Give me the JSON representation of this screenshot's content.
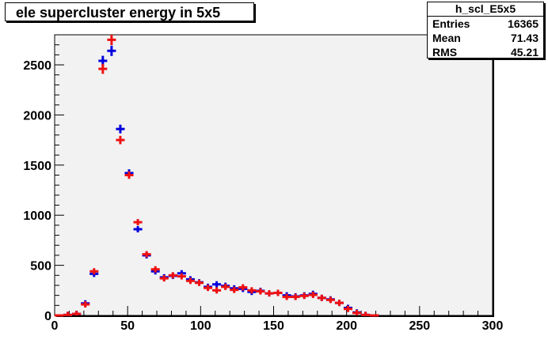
{
  "title_box": {
    "title": "ele supercluster energy in 5x5"
  },
  "stats": {
    "name": "h_scl_E5x5",
    "rows": [
      {
        "label": "Entries",
        "value": "16365"
      },
      {
        "label": "Mean",
        "value": "71.43"
      },
      {
        "label": "RMS",
        "value": "45.21"
      }
    ]
  },
  "colors": {
    "plot_bg": "#f2f2f2",
    "blue_series": "#0000dd",
    "red_series": "#ee1111"
  },
  "chart_data": {
    "type": "scatter",
    "title": "ele supercluster energy in 5x5",
    "xlabel": "",
    "ylabel": "",
    "xlim": [
      0,
      300
    ],
    "ylim": [
      0,
      2800
    ],
    "bin_width": 6,
    "x_ticks": [
      0,
      50,
      100,
      150,
      200,
      250,
      300
    ],
    "y_ticks": [
      0,
      500,
      1000,
      1500,
      2000,
      2500
    ],
    "grid": false,
    "series": [
      {
        "color": "blue",
        "x": [
          3,
          9,
          15,
          21,
          27,
          33,
          39,
          45,
          51,
          57,
          63,
          69,
          75,
          81,
          87,
          93,
          99,
          105,
          111,
          117,
          123,
          129,
          135,
          141,
          147,
          153,
          159,
          165,
          171,
          177,
          183,
          189,
          195,
          201,
          207,
          213,
          219
        ],
        "values": [
          0,
          5,
          15,
          120,
          415,
          2540,
          2640,
          1860,
          1420,
          860,
          600,
          440,
          380,
          395,
          420,
          360,
          330,
          285,
          310,
          295,
          270,
          265,
          235,
          245,
          220,
          225,
          200,
          190,
          200,
          215,
          175,
          160,
          125,
          75,
          30,
          5,
          0
        ]
      },
      {
        "color": "red",
        "x": [
          3,
          9,
          15,
          21,
          27,
          33,
          39,
          45,
          51,
          57,
          63,
          69,
          75,
          81,
          87,
          93,
          99,
          105,
          111,
          117,
          123,
          129,
          135,
          141,
          147,
          153,
          159,
          165,
          171,
          177,
          183,
          189,
          195,
          201,
          207,
          213,
          219
        ],
        "values": [
          0,
          5,
          15,
          110,
          440,
          2460,
          2750,
          1750,
          1400,
          930,
          610,
          460,
          370,
          400,
          390,
          345,
          325,
          275,
          250,
          285,
          255,
          280,
          250,
          240,
          220,
          225,
          185,
          185,
          195,
          205,
          175,
          155,
          125,
          65,
          25,
          5,
          0
        ]
      }
    ]
  }
}
